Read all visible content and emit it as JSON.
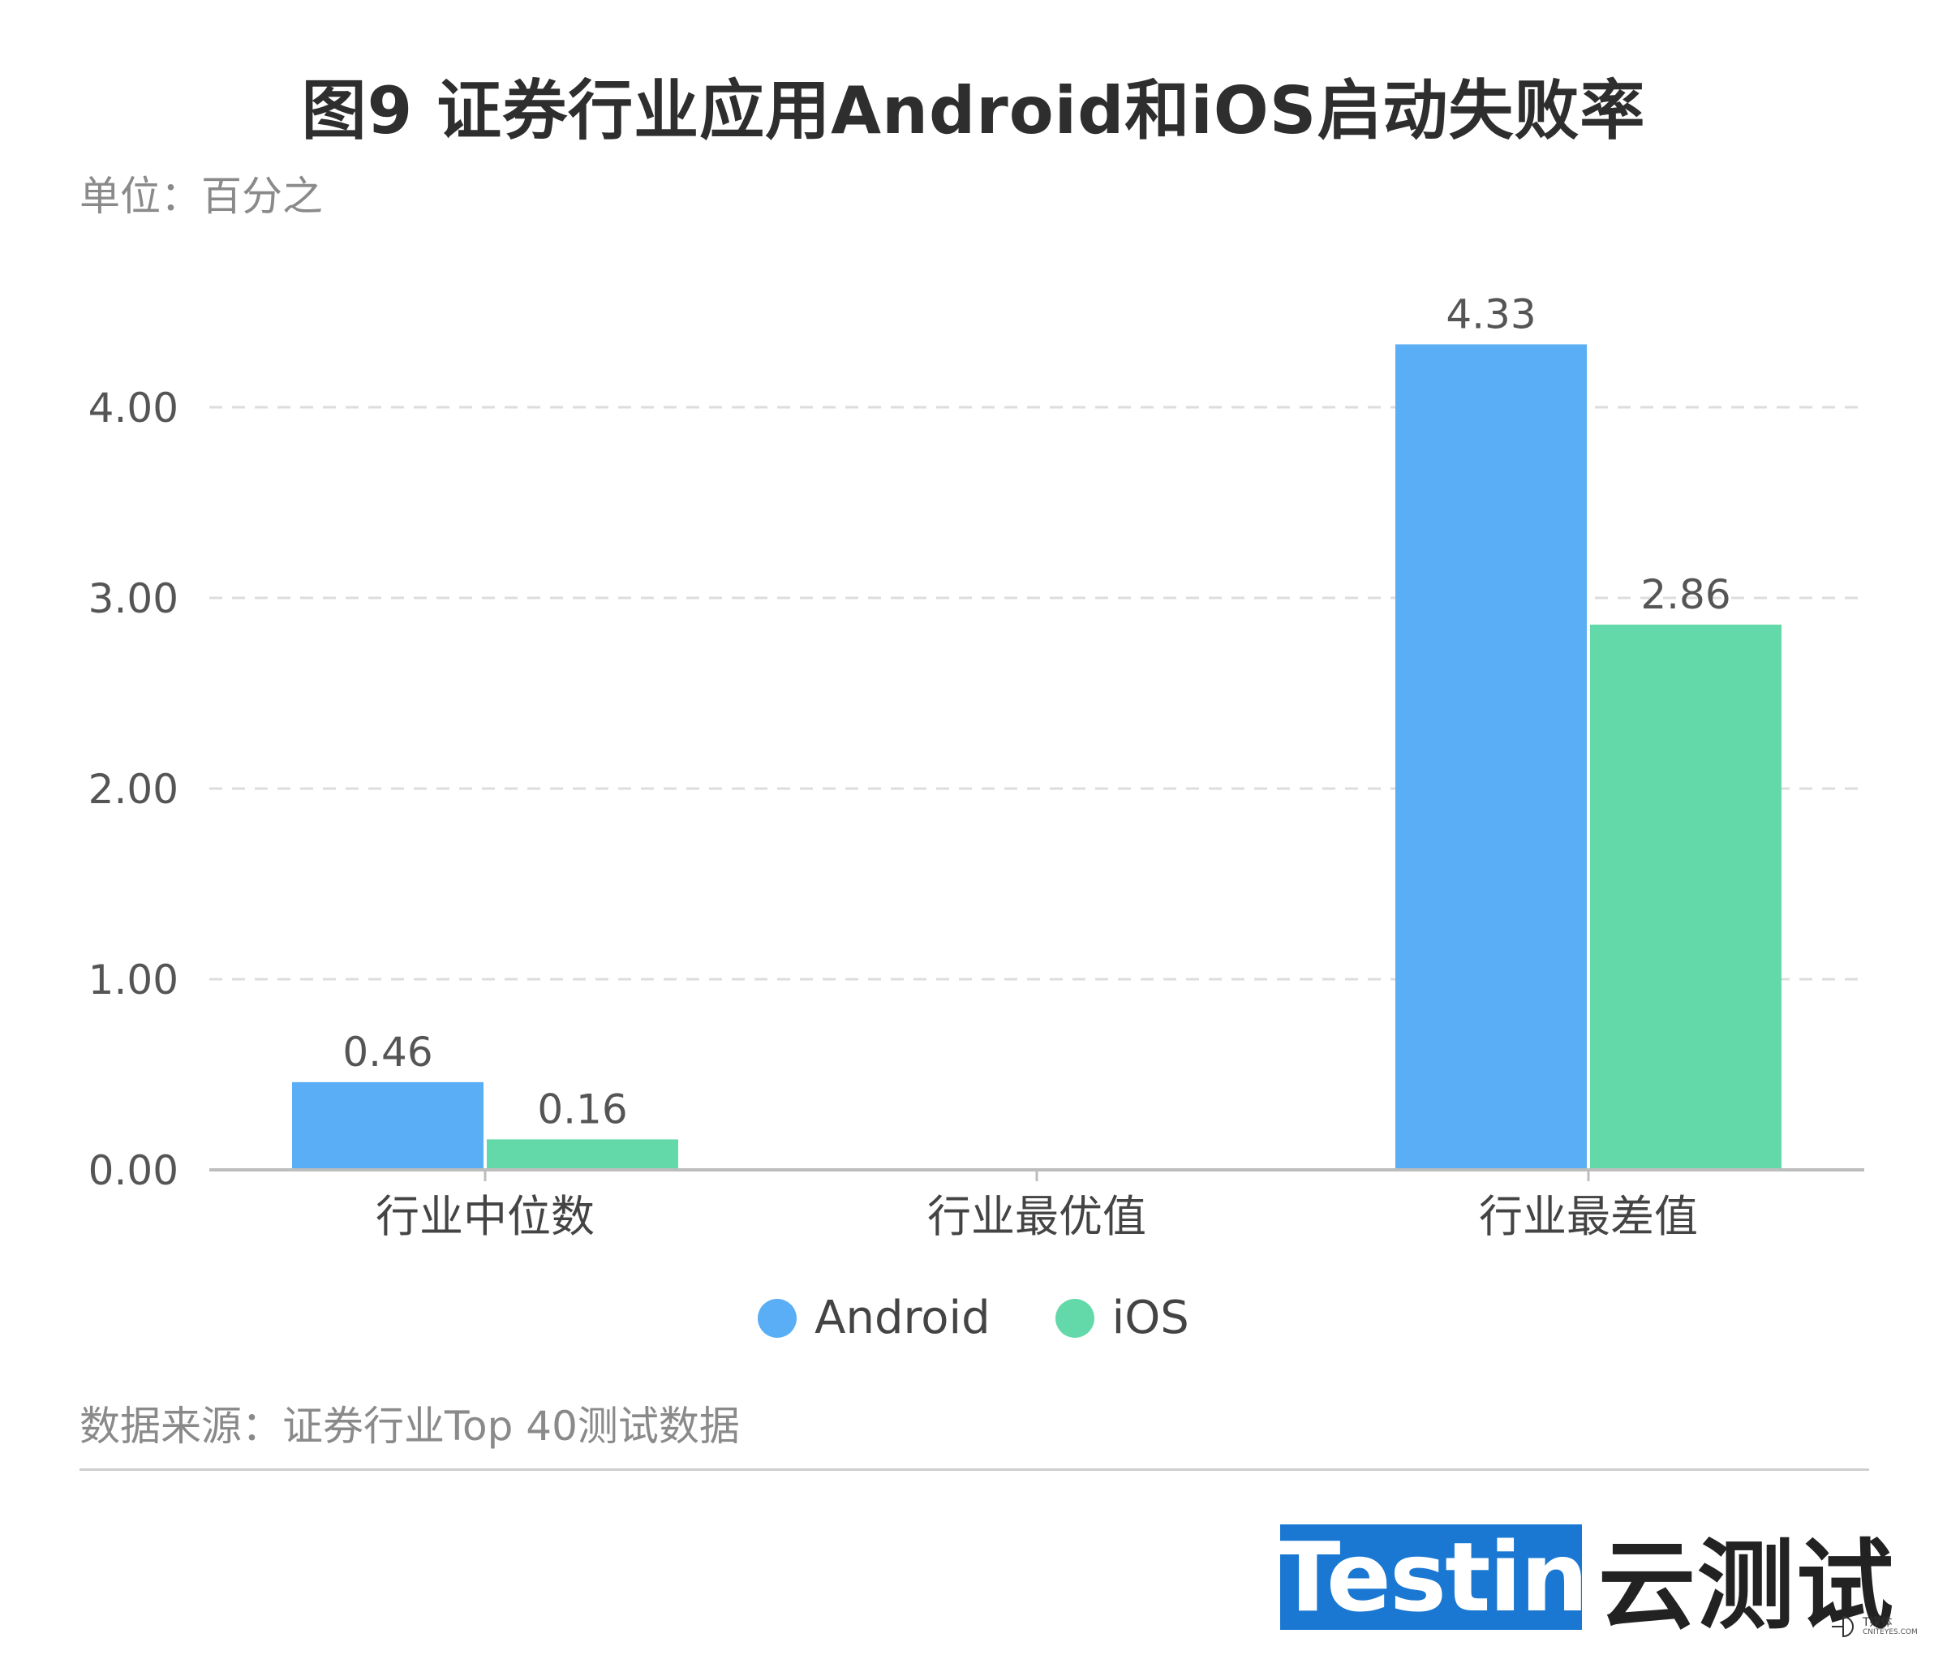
{
  "header": {
    "title": "图9 证券行业应用Android和iOS启动失败率",
    "unit": "单位：百分之"
  },
  "legend": {
    "items": [
      {
        "label": "Android",
        "color": "#5aaef5"
      },
      {
        "label": "iOS",
        "color": "#63d9aa"
      }
    ]
  },
  "footer": {
    "source": "数据来源：证券行业Top 40测试数据",
    "brand_en": "Testin",
    "brand_cn": "云测试",
    "watermark": "T媒体",
    "watermark_sub": "CNITEYES.COM"
  },
  "colors": {
    "android": "#5aaef5",
    "ios": "#63d9aa",
    "grid": "#dddddd",
    "axis": "#bdbdbd",
    "brand_blue": "#1a78d3"
  },
  "chart_data": {
    "type": "bar",
    "categories": [
      "行业中位数",
      "行业最优值",
      "行业最差值"
    ],
    "series": [
      {
        "name": "Android",
        "values": [
          0.46,
          0,
          4.33
        ],
        "labels": [
          "0.46",
          "",
          "4.33"
        ]
      },
      {
        "name": "iOS",
        "values": [
          0.16,
          0,
          2.86
        ],
        "labels": [
          "0.16",
          "",
          "2.86"
        ]
      }
    ],
    "yticks": [
      "0.00",
      "1.00",
      "2.00",
      "3.00",
      "4.00"
    ],
    "ylim": [
      0,
      4.33
    ],
    "grid": true,
    "legend_position": "bottom"
  }
}
